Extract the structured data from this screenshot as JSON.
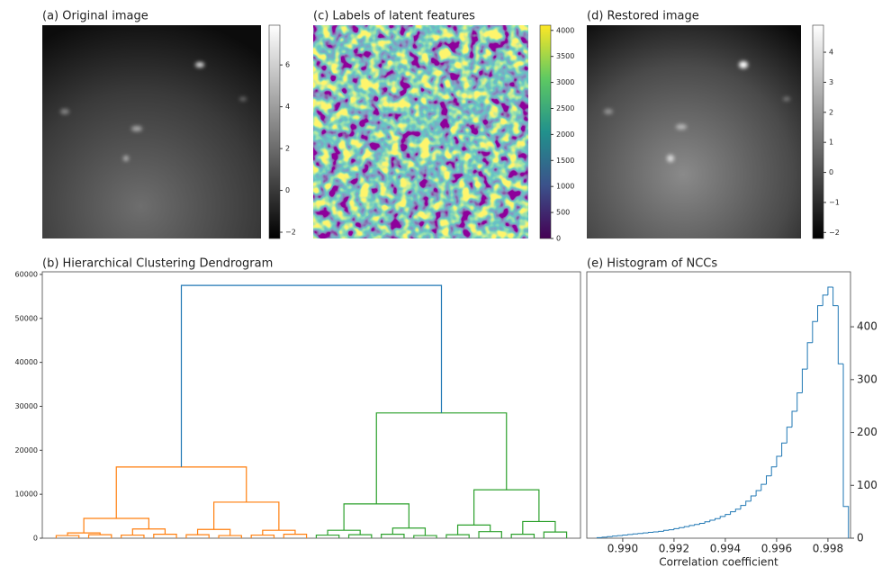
{
  "chart_data": [
    {
      "type": "image",
      "title": "(a) Original image",
      "colormap": "gray",
      "ylim": [
        -2.3,
        7.9
      ],
      "yticks": [
        {
          "value": -2,
          "label": "−2"
        },
        0,
        2,
        4,
        6
      ]
    },
    {
      "type": "image",
      "title": "(c) Labels of latent features",
      "colormap": "viridis",
      "ylim": [
        0,
        4100
      ],
      "yticks": [
        0,
        500,
        1000,
        1500,
        2000,
        2500,
        3000,
        3500,
        4000
      ]
    },
    {
      "type": "image",
      "title": "(d) Restored image",
      "colormap": "gray",
      "ylim": [
        -2.2,
        4.9
      ],
      "yticks": [
        {
          "value": -2,
          "label": "−2"
        },
        {
          "value": -1,
          "label": "−1"
        },
        0,
        1,
        2,
        3,
        4
      ]
    },
    {
      "type": "dendrogram",
      "title": "(b) Hierarchical Clustering Dendrogram",
      "ylim": [
        0,
        60600
      ],
      "yticks": [
        0,
        10000,
        20000,
        30000,
        40000,
        50000,
        60000
      ],
      "tree": {
        "height": 57500,
        "color": "#1f77b4",
        "children": [
          {
            "height": 16200,
            "color": "#ff7f0e",
            "children": [
              {
                "height": 4500,
                "children": [
                  {
                    "height": 1200,
                    "children": [
                      {
                        "height": 600
                      },
                      {
                        "height": 800
                      }
                    ]
                  },
                  {
                    "height": 2100,
                    "children": [
                      {
                        "height": 700
                      },
                      {
                        "height": 900
                      }
                    ]
                  }
                ]
              },
              {
                "height": 8200,
                "children": [
                  {
                    "height": 2000,
                    "children": [
                      {
                        "height": 800
                      },
                      {
                        "height": 600
                      }
                    ]
                  },
                  {
                    "height": 1800,
                    "children": [
                      {
                        "height": 700
                      },
                      {
                        "height": 900
                      }
                    ]
                  }
                ]
              }
            ]
          },
          {
            "height": 28500,
            "color": "#2ca02c",
            "children": [
              {
                "height": 7800,
                "children": [
                  {
                    "height": 1800,
                    "children": [
                      {
                        "height": 700
                      },
                      {
                        "height": 800
                      }
                    ]
                  },
                  {
                    "height": 2300,
                    "children": [
                      {
                        "height": 900
                      },
                      {
                        "height": 600
                      }
                    ]
                  }
                ]
              },
              {
                "height": 11000,
                "children": [
                  {
                    "height": 3000,
                    "children": [
                      {
                        "height": 800
                      },
                      {
                        "height": 1500
                      }
                    ]
                  },
                  {
                    "height": 3800,
                    "children": [
                      {
                        "height": 900
                      },
                      {
                        "height": 1400
                      }
                    ]
                  }
                ]
              }
            ]
          }
        ]
      }
    },
    {
      "type": "histogram",
      "title": "(e) Histogram of NCCs",
      "x_label": "Correlation coefficient",
      "color": "#1f77b4",
      "xlim": [
        0.9886,
        0.99888
      ],
      "ylim": [
        0,
        504
      ],
      "xticks": [
        {
          "value": 0.99,
          "label": "0.990"
        },
        {
          "value": 0.992,
          "label": "0.992"
        },
        {
          "value": 0.994,
          "label": "0.994"
        },
        {
          "value": 0.996,
          "label": "0.996"
        },
        {
          "value": 0.998,
          "label": "0.998"
        }
      ],
      "yticks": [
        0,
        100,
        200,
        300,
        400
      ],
      "bins": [
        0.989,
        0.9892,
        0.9894,
        0.9896,
        0.9898,
        0.99,
        0.9902,
        0.9904,
        0.9906,
        0.9908,
        0.991,
        0.9912,
        0.9914,
        0.9916,
        0.9918,
        0.992,
        0.9922,
        0.9924,
        0.9926,
        0.9928,
        0.993,
        0.9932,
        0.9934,
        0.9936,
        0.9938,
        0.994,
        0.9942,
        0.9944,
        0.9946,
        0.9948,
        0.995,
        0.9952,
        0.9954,
        0.9956,
        0.9958,
        0.996,
        0.9962,
        0.9964,
        0.9966,
        0.9968,
        0.997,
        0.9972,
        0.9974,
        0.9976,
        0.9978,
        0.998,
        0.9982,
        0.9984,
        0.9986,
        0.9988
      ],
      "values": [
        1,
        2,
        3,
        4,
        5,
        6,
        7,
        8,
        9,
        10,
        11,
        12,
        13,
        15,
        16,
        18,
        20,
        22,
        24,
        26,
        28,
        31,
        34,
        37,
        41,
        45,
        50,
        55,
        62,
        70,
        80,
        90,
        102,
        118,
        135,
        155,
        180,
        210,
        240,
        275,
        320,
        370,
        410,
        440,
        460,
        475,
        440,
        330,
        60
      ]
    }
  ]
}
